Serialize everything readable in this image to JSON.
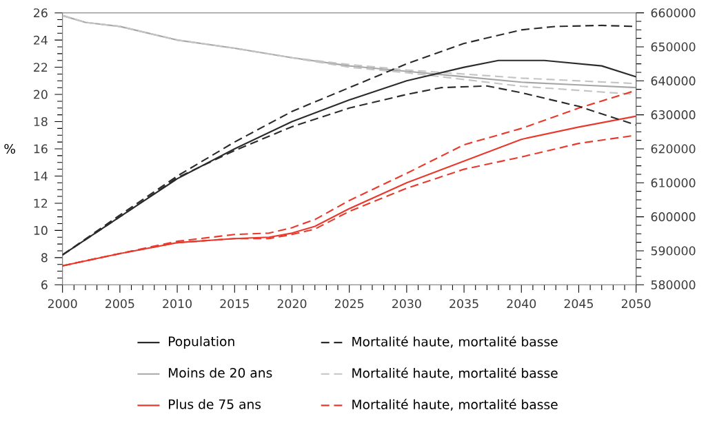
{
  "chart_data": {
    "type": "line",
    "ylabel": "%",
    "xlim": [
      2000,
      2050
    ],
    "xticks": [
      2000,
      2005,
      2010,
      2015,
      2020,
      2025,
      2030,
      2035,
      2040,
      2045,
      2050
    ],
    "ylim": [
      6,
      26
    ],
    "yticks": [
      6,
      8,
      10,
      12,
      14,
      16,
      18,
      20,
      22,
      24,
      26
    ],
    "y2lim": [
      580000,
      660000
    ],
    "y2ticks": [
      580000,
      590000,
      600000,
      610000,
      620000,
      630000,
      640000,
      650000,
      660000
    ],
    "legend": "bottom",
    "grid": false,
    "series": [
      {
        "name": "Population",
        "color": "#2b2b2b",
        "axis": "y2",
        "line_style": "solid",
        "x": [
          2000,
          2005,
          2010,
          2015,
          2020,
          2025,
          2030,
          2035,
          2038,
          2042,
          2047,
          2050
        ],
        "values": [
          588800,
          600000,
          611200,
          620000,
          628000,
          634400,
          640000,
          644000,
          646000,
          646000,
          644400,
          641200
        ]
      },
      {
        "name": "Mortalité haute, mortalité basse",
        "color": "#2b2b2b",
        "axis": "y2",
        "line_style": "dashed",
        "x": [
          2000,
          2005,
          2010,
          2015,
          2020,
          2025,
          2030,
          2035,
          2040,
          2043,
          2047,
          2050
        ],
        "values": [
          588800,
          600500,
          612000,
          622000,
          631000,
          638000,
          645000,
          651000,
          655000,
          656000,
          656300,
          656000
        ]
      },
      {
        "color": "#2b2b2b",
        "axis": "y2",
        "line_style": "dashed",
        "x": [
          2000,
          2005,
          2010,
          2015,
          2020,
          2025,
          2030,
          2033,
          2037,
          2040,
          2045,
          2050
        ],
        "values": [
          588800,
          600000,
          611500,
          619500,
          626500,
          632000,
          636000,
          638000,
          638500,
          636500,
          632500,
          627000
        ]
      },
      {
        "name": "Moins de 20 ans",
        "color": "#a6a6a6",
        "line_style": "solid",
        "x": [
          2000,
          2002,
          2005,
          2010,
          2015,
          2020,
          2025,
          2030,
          2035,
          2040,
          2045,
          2050
        ],
        "values": [
          25.8,
          25.3,
          25.0,
          24.0,
          23.4,
          22.7,
          22.1,
          21.7,
          21.3,
          20.9,
          20.7,
          20.5
        ]
      },
      {
        "name": "Mortalité haute, mortalité basse",
        "color": "#c4c4c4",
        "line_style": "dashed",
        "x": [
          2000,
          2002,
          2005,
          2010,
          2015,
          2020,
          2025,
          2030,
          2035,
          2040,
          2045,
          2050
        ],
        "values": [
          25.8,
          25.3,
          25.0,
          24.0,
          23.4,
          22.7,
          22.2,
          21.8,
          21.5,
          21.2,
          21.0,
          20.8
        ]
      },
      {
        "color": "#c4c4c4",
        "line_style": "dashed",
        "x": [
          2000,
          2002,
          2005,
          2010,
          2015,
          2020,
          2025,
          2030,
          2035,
          2040,
          2045,
          2050
        ],
        "values": [
          25.8,
          25.3,
          25.0,
          24.0,
          23.4,
          22.7,
          22.0,
          21.6,
          21.1,
          20.6,
          20.3,
          20.0
        ]
      },
      {
        "name": "Plus de 75 ans",
        "color": "#e8392c",
        "line_style": "solid",
        "x": [
          2000,
          2005,
          2010,
          2015,
          2018,
          2020,
          2022,
          2025,
          2030,
          2035,
          2040,
          2045,
          2050
        ],
        "values": [
          7.4,
          8.3,
          9.1,
          9.4,
          9.5,
          9.8,
          10.3,
          11.6,
          13.5,
          15.1,
          16.7,
          17.6,
          18.4
        ]
      },
      {
        "name": "Mortalité haute, mortalité basse",
        "color": "#e8392c",
        "line_style": "dashed",
        "x": [
          2000,
          2005,
          2010,
          2015,
          2018,
          2020,
          2022,
          2025,
          2030,
          2035,
          2040,
          2045,
          2050
        ],
        "values": [
          7.4,
          8.3,
          9.2,
          9.7,
          9.8,
          10.2,
          10.8,
          12.2,
          14.2,
          16.3,
          17.5,
          19.0,
          20.3
        ]
      },
      {
        "color": "#e8392c",
        "line_style": "dashed",
        "x": [
          2000,
          2005,
          2010,
          2015,
          2018,
          2020,
          2022,
          2025,
          2030,
          2035,
          2040,
          2045,
          2050
        ],
        "values": [
          7.4,
          8.3,
          9.1,
          9.4,
          9.4,
          9.7,
          10.1,
          11.4,
          13.1,
          14.5,
          15.4,
          16.4,
          17.0
        ]
      }
    ]
  }
}
